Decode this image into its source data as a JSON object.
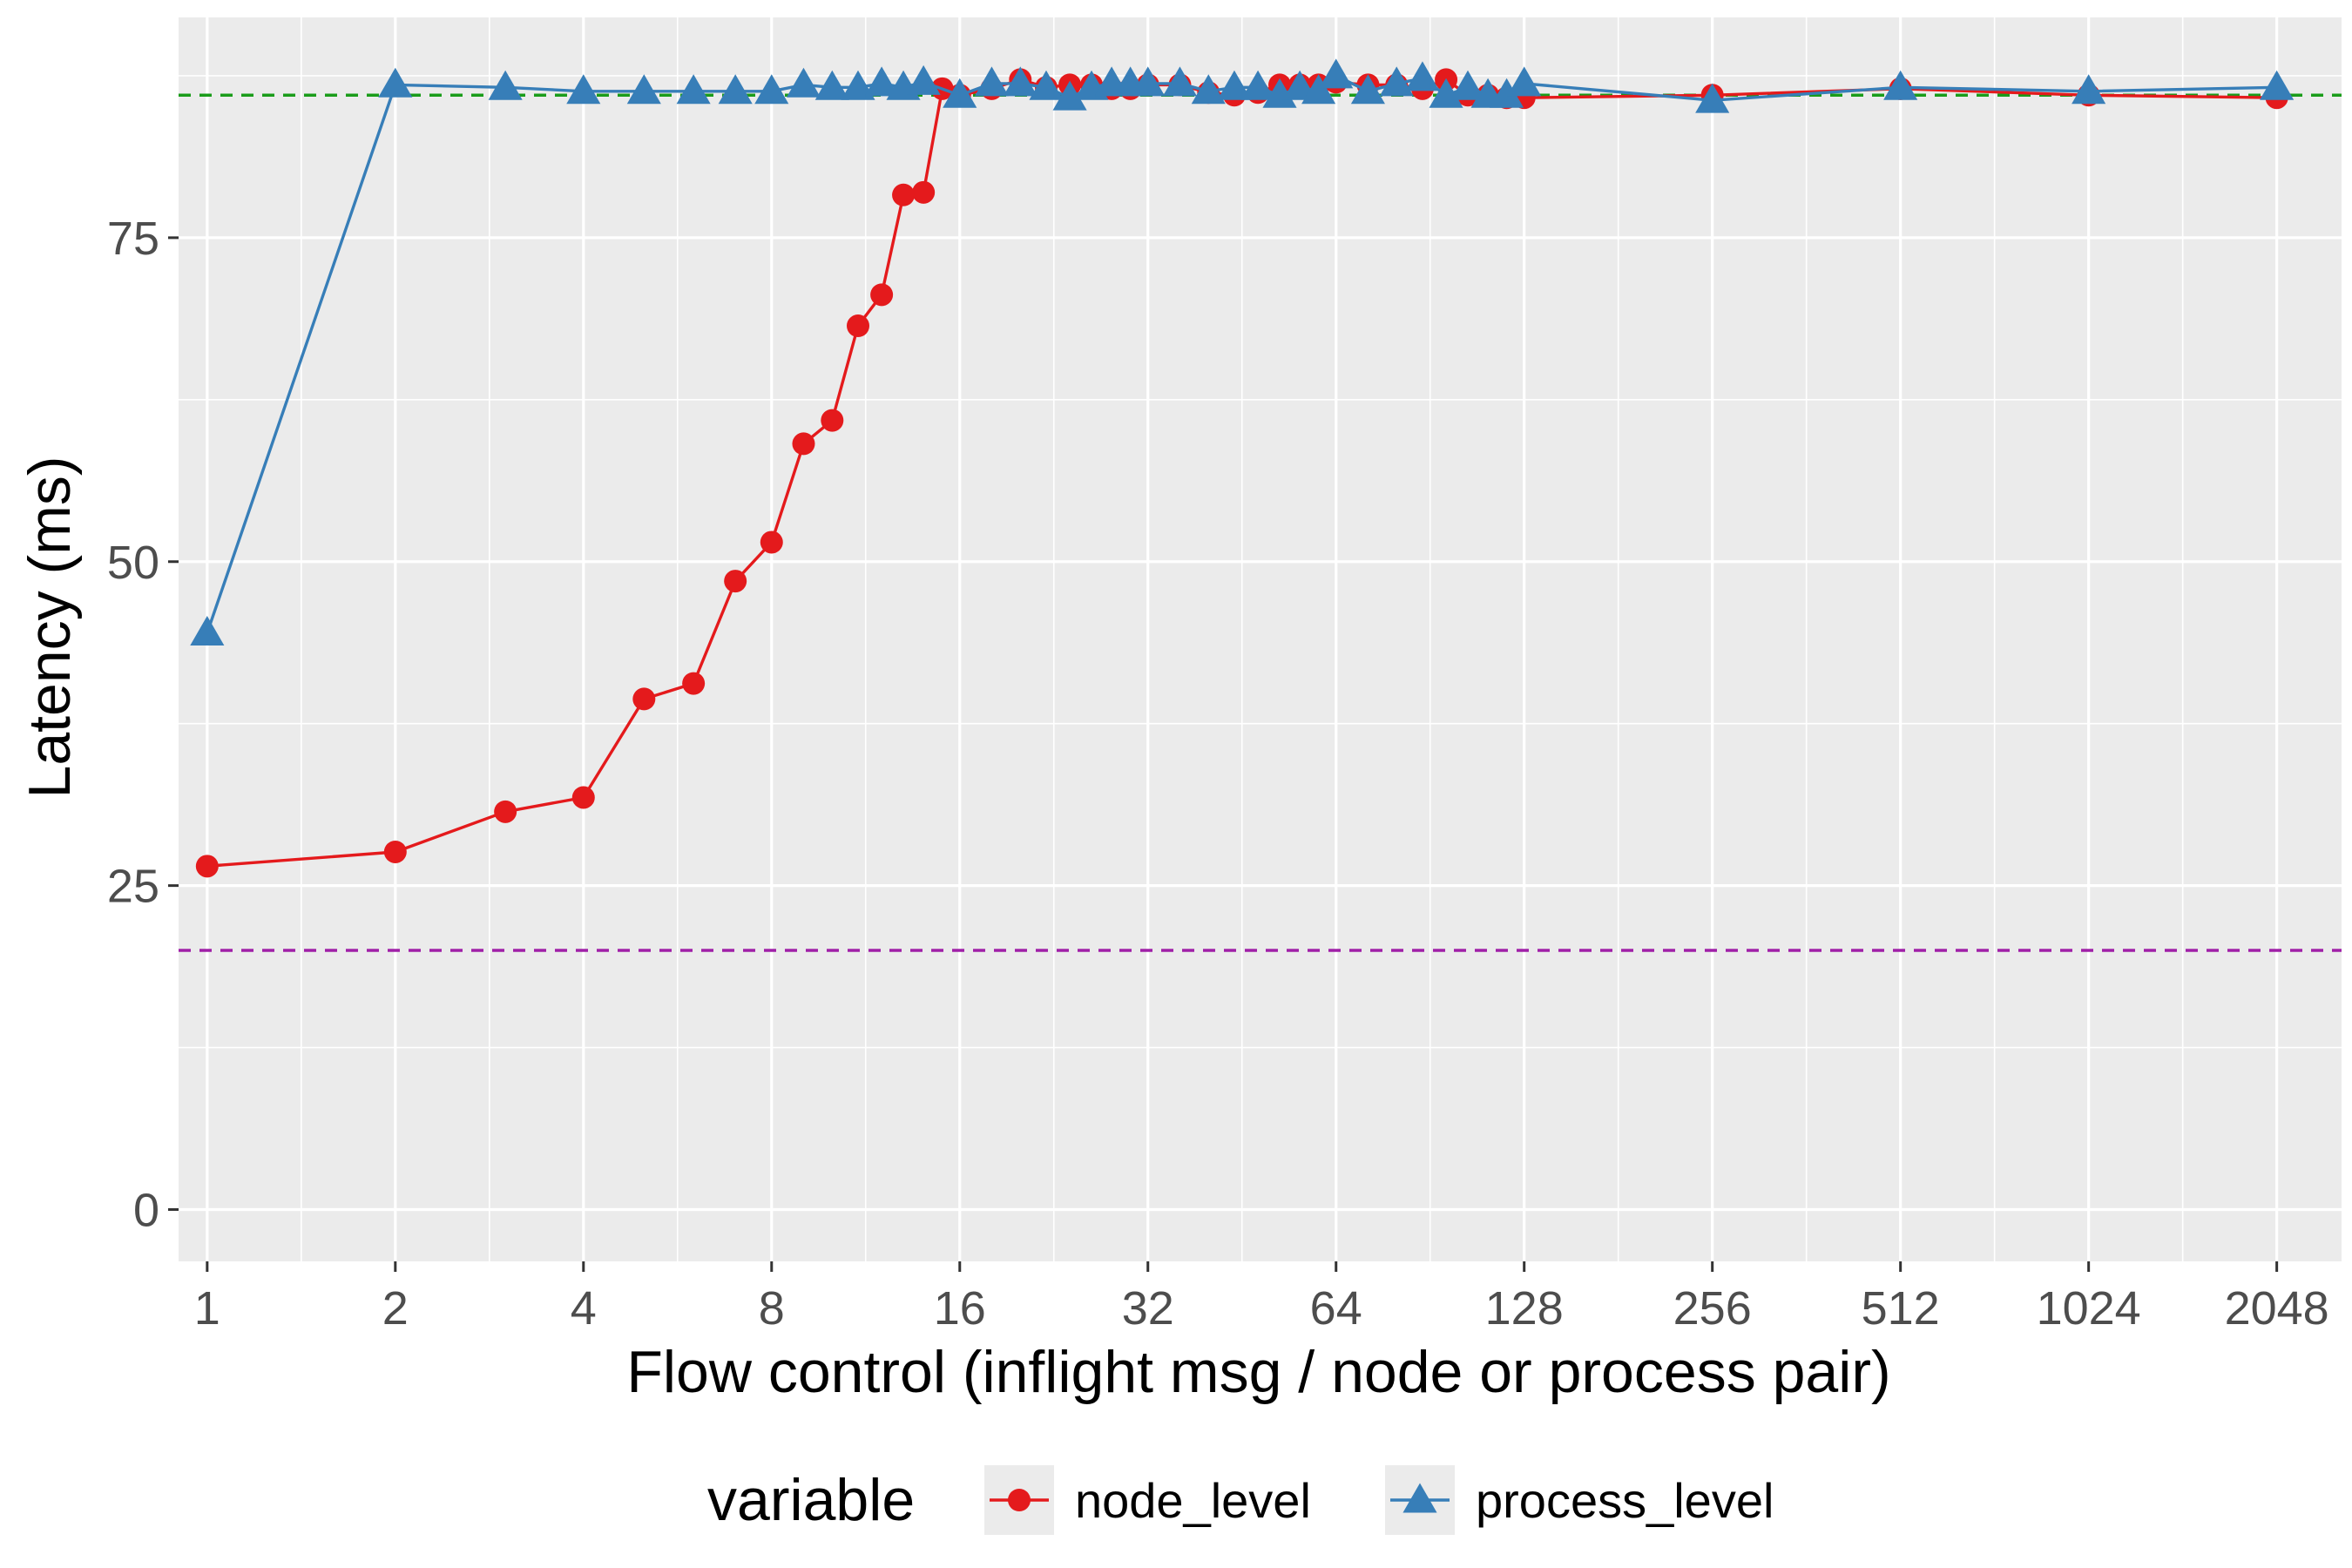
{
  "chart_data": {
    "type": "line",
    "title": "",
    "xlabel": "Flow control (inflight msg / node or process pair)",
    "ylabel": "Latency (ms)",
    "x_scale": "log2",
    "xlim": [
      0.9,
      2600
    ],
    "ylim": [
      -4,
      92
    ],
    "x_ticks": [
      1,
      2,
      4,
      8,
      16,
      32,
      64,
      128,
      256,
      512,
      1024,
      2048
    ],
    "x_tick_labels": [
      "1",
      "2",
      "4",
      "8",
      "16",
      "32",
      "64",
      "128",
      "256",
      "512",
      "1024",
      "2048"
    ],
    "y_ticks": [
      0,
      25,
      50,
      75
    ],
    "y_tick_labels": [
      "0",
      "25",
      "50",
      "75"
    ],
    "grid": true,
    "legend": {
      "title": "variable",
      "position": "bottom"
    },
    "reference_lines": [
      {
        "y": 86,
        "color": "#1a9c1a",
        "style": "dashed"
      },
      {
        "y": 20,
        "color": "#a020a8",
        "style": "dashed"
      }
    ],
    "series": [
      {
        "name": "node_level",
        "color": "#e41a1c",
        "marker": "circle",
        "x": [
          1,
          2,
          3,
          4,
          5,
          6,
          7,
          8,
          9,
          10,
          11,
          12,
          13,
          14,
          15,
          16,
          18,
          20,
          22,
          24,
          26,
          28,
          30,
          32,
          36,
          40,
          44,
          48,
          52,
          56,
          60,
          64,
          72,
          80,
          88,
          96,
          104,
          112,
          120,
          128,
          256,
          512,
          1024,
          2048
        ],
        "y": [
          26.5,
          27.6,
          30.7,
          31.8,
          39.4,
          40.6,
          48.5,
          51.5,
          59.1,
          60.9,
          68.2,
          70.6,
          78.3,
          78.5,
          86.5,
          86.0,
          86.5,
          87.2,
          86.6,
          86.8,
          86.8,
          86.5,
          86.5,
          86.8,
          86.8,
          86.2,
          86.0,
          86.2,
          86.8,
          86.8,
          86.8,
          87.0,
          86.8,
          86.8,
          86.5,
          87.2,
          86.0,
          86.0,
          85.8,
          85.8,
          86.0,
          86.5,
          86.0,
          85.8
        ]
      },
      {
        "name": "process_level",
        "color": "#377eb8",
        "marker": "triangle",
        "x": [
          1,
          2,
          3,
          4,
          5,
          6,
          7,
          8,
          9,
          10,
          11,
          12,
          13,
          14,
          16,
          18,
          20,
          22,
          24,
          26,
          28,
          30,
          32,
          36,
          40,
          44,
          48,
          52,
          56,
          60,
          64,
          72,
          80,
          88,
          96,
          104,
          112,
          120,
          128,
          256,
          512,
          1024,
          2048
        ],
        "y": [
          44.5,
          86.8,
          86.6,
          86.3,
          86.3,
          86.3,
          86.3,
          86.3,
          86.8,
          86.6,
          86.6,
          86.9,
          86.6,
          87.0,
          86.0,
          86.9,
          86.9,
          86.6,
          85.8,
          86.6,
          86.9,
          86.9,
          86.9,
          86.9,
          86.3,
          86.6,
          86.6,
          86.0,
          86.6,
          86.3,
          87.5,
          86.3,
          86.9,
          87.3,
          86.0,
          86.6,
          86.0,
          86.0,
          86.9,
          85.6,
          86.6,
          86.3,
          86.6
        ]
      }
    ]
  }
}
